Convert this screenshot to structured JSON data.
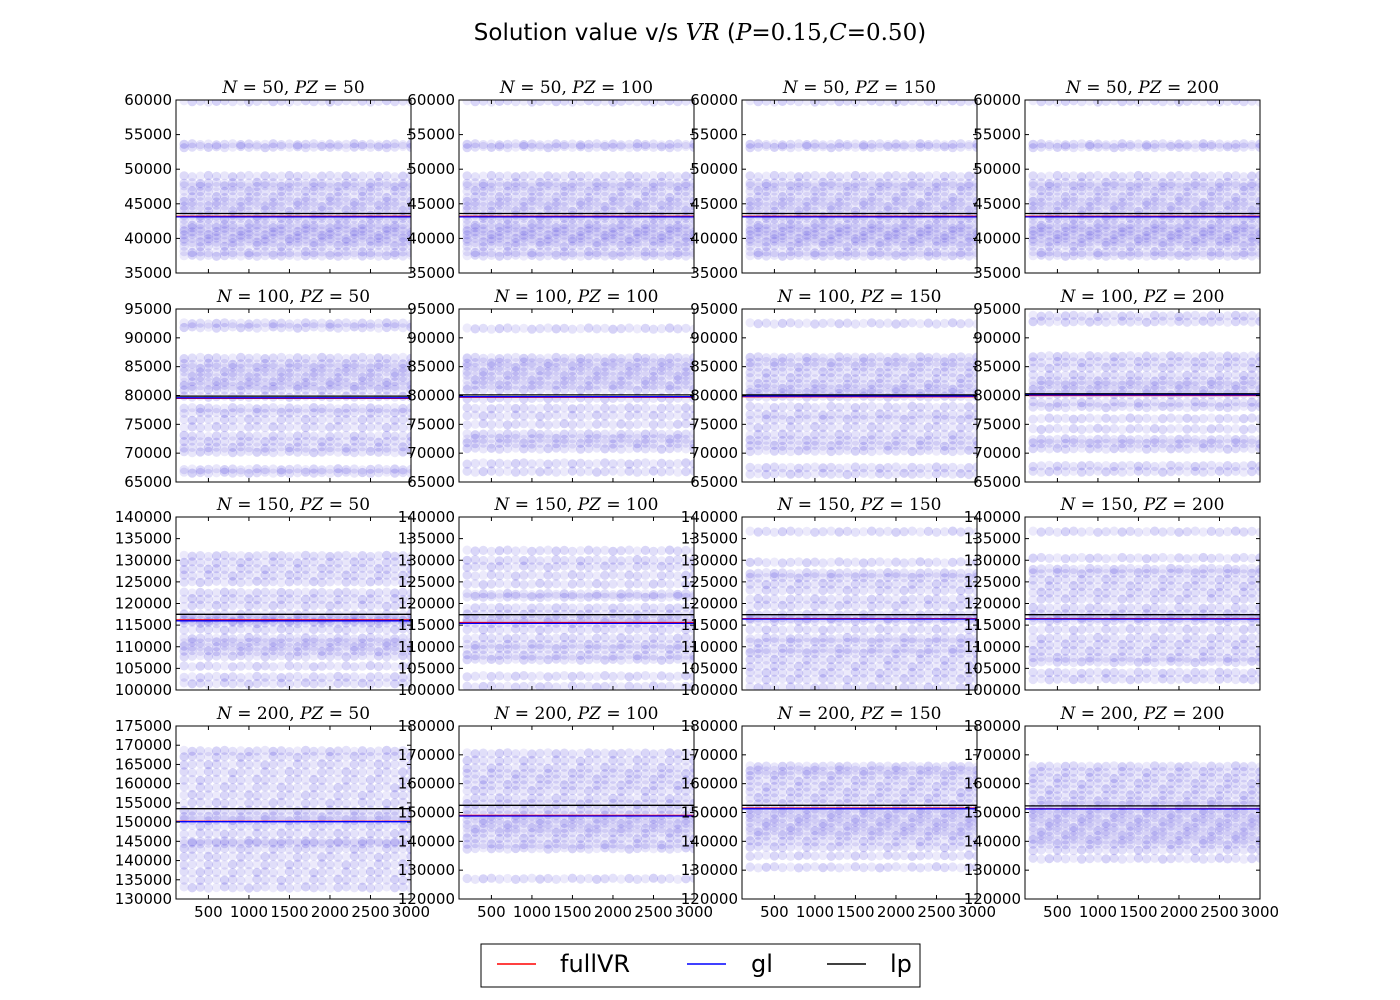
{
  "figure": {
    "title_prefix": "Solution value v/s ",
    "title_var": "VR",
    "title_params_open": " (",
    "title_p": "P",
    "title_p_val": "=0.15,",
    "title_c": "C",
    "title_c_val": "=0.50",
    "title_params_close": ")",
    "colors": {
      "fullVR": "#ff0000",
      "gl": "#0000ff",
      "lp": "#000000",
      "points": "#2b1bd6"
    }
  },
  "legend": [
    {
      "label": "fullVR",
      "color": "#ff0000"
    },
    {
      "label": "gl",
      "color": "#0000ff"
    },
    {
      "label": "lp",
      "color": "#000000"
    }
  ],
  "chart_data": [
    {
      "type": "scatter",
      "N": "50",
      "PZ": "50",
      "xlim": [
        100,
        3000
      ],
      "ylim": [
        35000,
        60000
      ],
      "yticks": [
        35000,
        40000,
        45000,
        50000,
        55000,
        60000
      ],
      "xticks": [
        500,
        1000,
        1500,
        2000,
        2500,
        3000
      ],
      "xticklabels_visible": false,
      "levels": [
        59800,
        53600,
        53200,
        49000,
        48000,
        47500,
        46800,
        46000,
        45300,
        44700,
        44000,
        43300,
        42800,
        42000,
        41500,
        41000,
        40500,
        40000,
        39500,
        38900,
        38000,
        37500
      ],
      "lines": [
        {
          "series": "fullVR",
          "y": 43200
        },
        {
          "series": "gl",
          "y": 43100
        },
        {
          "series": "lp",
          "y": 43600
        }
      ]
    },
    {
      "type": "scatter",
      "N": "50",
      "PZ": "100",
      "xlim": [
        100,
        3000
      ],
      "ylim": [
        35000,
        60000
      ],
      "yticks": [
        35000,
        40000,
        45000,
        50000,
        55000,
        60000
      ],
      "xticks": [
        500,
        1000,
        1500,
        2000,
        2500,
        3000
      ],
      "xticklabels_visible": false,
      "levels": [
        59800,
        53600,
        53200,
        49000,
        48000,
        47500,
        46800,
        46000,
        45300,
        44700,
        44000,
        43300,
        42800,
        42000,
        41500,
        41000,
        40500,
        40000,
        39500,
        38900,
        38000,
        37500
      ],
      "lines": [
        {
          "series": "fullVR",
          "y": 43200
        },
        {
          "series": "gl",
          "y": 43100
        },
        {
          "series": "lp",
          "y": 43600
        }
      ]
    },
    {
      "type": "scatter",
      "N": "50",
      "PZ": "150",
      "xlim": [
        100,
        3000
      ],
      "ylim": [
        35000,
        60000
      ],
      "yticks": [
        35000,
        40000,
        45000,
        50000,
        55000,
        60000
      ],
      "xticks": [
        500,
        1000,
        1500,
        2000,
        2500,
        3000
      ],
      "xticklabels_visible": false,
      "levels": [
        59800,
        53600,
        53200,
        49000,
        48000,
        47500,
        46800,
        46000,
        45300,
        44700,
        44000,
        43300,
        42800,
        42000,
        41500,
        41000,
        40500,
        40000,
        39500,
        38900,
        38000,
        37500
      ],
      "lines": [
        {
          "series": "fullVR",
          "y": 43200
        },
        {
          "series": "gl",
          "y": 43100
        },
        {
          "series": "lp",
          "y": 43600
        }
      ]
    },
    {
      "type": "scatter",
      "N": "50",
      "PZ": "200",
      "xlim": [
        100,
        3000
      ],
      "ylim": [
        35000,
        60000
      ],
      "yticks": [
        35000,
        40000,
        45000,
        50000,
        55000,
        60000
      ],
      "xticks": [
        500,
        1000,
        1500,
        2000,
        2500,
        3000
      ],
      "xticklabels_visible": false,
      "levels": [
        59800,
        53600,
        53200,
        49000,
        48000,
        47500,
        46800,
        46000,
        45300,
        44700,
        44000,
        43300,
        42800,
        42000,
        41500,
        41000,
        40500,
        40000,
        39500,
        38900,
        38000,
        37500
      ],
      "lines": [
        {
          "series": "fullVR",
          "y": 43200
        },
        {
          "series": "gl",
          "y": 43100
        },
        {
          "series": "lp",
          "y": 43600
        }
      ]
    },
    {
      "type": "scatter",
      "N": "100",
      "PZ": "50",
      "xlim": [
        100,
        3000
      ],
      "ylim": [
        65000,
        95000
      ],
      "yticks": [
        65000,
        70000,
        75000,
        80000,
        85000,
        90000,
        95000
      ],
      "xticks": [
        500,
        1000,
        1500,
        2000,
        2500,
        3000
      ],
      "xticklabels_visible": false,
      "levels": [
        92500,
        91800,
        86500,
        85500,
        84800,
        84000,
        83200,
        82400,
        81700,
        81000,
        79800,
        77800,
        77000,
        75800,
        74500,
        73000,
        72000,
        71000,
        70200,
        67200,
        66600
      ],
      "lines": [
        {
          "series": "fullVR",
          "y": 79500
        },
        {
          "series": "gl",
          "y": 79600
        },
        {
          "series": "lp",
          "y": 79900
        }
      ]
    },
    {
      "type": "scatter",
      "N": "100",
      "PZ": "100",
      "xlim": [
        100,
        3000
      ],
      "ylim": [
        65000,
        95000
      ],
      "yticks": [
        65000,
        70000,
        75000,
        80000,
        85000,
        90000,
        95000
      ],
      "xticks": [
        500,
        1000,
        1500,
        2000,
        2500,
        3000
      ],
      "xticklabels_visible": false,
      "levels": [
        91600,
        86500,
        85700,
        85000,
        84200,
        83400,
        82600,
        81800,
        81000,
        79500,
        77800,
        76500,
        75000,
        73300,
        72500,
        71700,
        70800,
        68200,
        66800
      ],
      "lines": [
        {
          "series": "fullVR",
          "y": 79700
        },
        {
          "series": "gl",
          "y": 79800
        },
        {
          "series": "lp",
          "y": 80100
        }
      ]
    },
    {
      "type": "scatter",
      "N": "100",
      "PZ": "150",
      "xlim": [
        100,
        3000
      ],
      "ylim": [
        65000,
        95000
      ],
      "yticks": [
        65000,
        70000,
        75000,
        80000,
        85000,
        90000,
        95000
      ],
      "xticks": [
        500,
        1000,
        1500,
        2000,
        2500,
        3000
      ],
      "xticklabels_visible": false,
      "levels": [
        92500,
        86600,
        85800,
        85000,
        84000,
        83000,
        82000,
        81200,
        80500,
        79800,
        78000,
        76700,
        75800,
        74500,
        73200,
        72200,
        71300,
        70400,
        67500,
        66400
      ],
      "lines": [
        {
          "series": "fullVR",
          "y": 79800
        },
        {
          "series": "gl",
          "y": 79900
        },
        {
          "series": "lp",
          "y": 80100
        }
      ]
    },
    {
      "type": "scatter",
      "N": "100",
      "PZ": "200",
      "xlim": [
        100,
        3000
      ],
      "ylim": [
        65000,
        95000
      ],
      "yticks": [
        65000,
        70000,
        75000,
        80000,
        85000,
        90000,
        95000
      ],
      "xticks": [
        500,
        1000,
        1500,
        2000,
        2500,
        3000
      ],
      "xticklabels_visible": false,
      "levels": [
        93800,
        92800,
        86800,
        85800,
        84800,
        83500,
        82500,
        81800,
        81000,
        80200,
        78800,
        78000,
        76000,
        74200,
        72400,
        71700,
        70800,
        67800,
        66800
      ],
      "lines": [
        {
          "series": "fullVR",
          "y": 80000
        },
        {
          "series": "gl",
          "y": 80100
        },
        {
          "series": "lp",
          "y": 80300
        }
      ]
    },
    {
      "type": "scatter",
      "N": "150",
      "PZ": "50",
      "xlim": [
        100,
        3000
      ],
      "ylim": [
        100000,
        140000
      ],
      "yticks": [
        100000,
        105000,
        110000,
        115000,
        120000,
        125000,
        130000,
        135000,
        140000
      ],
      "xticks": [
        500,
        1000,
        1500,
        2000,
        2500,
        3000
      ],
      "xticklabels_visible": false,
      "levels": [
        131000,
        129500,
        128000,
        126500,
        125000,
        122500,
        121000,
        119500,
        117500,
        116500,
        116000,
        115500,
        114000,
        112000,
        111000,
        110000,
        109000,
        107800,
        105500,
        103000,
        101500
      ],
      "lines": [
        {
          "series": "fullVR",
          "y": 116200
        },
        {
          "series": "gl",
          "y": 116000
        },
        {
          "series": "lp",
          "y": 117500
        }
      ]
    },
    {
      "type": "scatter",
      "N": "150",
      "PZ": "100",
      "xlim": [
        100,
        3000
      ],
      "ylim": [
        100000,
        140000
      ],
      "yticks": [
        100000,
        105000,
        110000,
        115000,
        120000,
        125000,
        130000,
        135000,
        140000
      ],
      "xticks": [
        500,
        1000,
        1500,
        2000,
        2500,
        3000
      ],
      "xticklabels_visible": false,
      "levels": [
        132200,
        130000,
        128500,
        126500,
        124500,
        122200,
        121500,
        119000,
        117500,
        116300,
        115500,
        114000,
        112000,
        110500,
        109500,
        108000,
        107000,
        103200,
        100800
      ],
      "lines": [
        {
          "series": "fullVR",
          "y": 115600
        },
        {
          "series": "gl",
          "y": 115400
        },
        {
          "series": "lp",
          "y": 117400
        }
      ]
    },
    {
      "type": "scatter",
      "N": "150",
      "PZ": "150",
      "xlim": [
        100,
        3000
      ],
      "ylim": [
        100000,
        140000
      ],
      "yticks": [
        100000,
        105000,
        110000,
        115000,
        120000,
        125000,
        130000,
        135000,
        140000
      ],
      "xticks": [
        500,
        1000,
        1500,
        2000,
        2500,
        3000
      ],
      "xticklabels_visible": false,
      "levels": [
        136600,
        129500,
        127000,
        126000,
        124500,
        123000,
        121000,
        119500,
        117500,
        116600,
        116000,
        114000,
        112000,
        111000,
        109500,
        108500,
        107000,
        105500,
        104000,
        102500,
        100600
      ],
      "lines": [
        {
          "series": "fullVR",
          "y": 116500
        },
        {
          "series": "gl",
          "y": 116400
        },
        {
          "series": "lp",
          "y": 117400
        }
      ]
    },
    {
      "type": "scatter",
      "N": "150",
      "PZ": "200",
      "xlim": [
        100,
        3000
      ],
      "ylim": [
        100000,
        140000
      ],
      "yticks": [
        100000,
        105000,
        110000,
        115000,
        120000,
        125000,
        130000,
        135000,
        140000
      ],
      "xticks": [
        500,
        1000,
        1500,
        2000,
        2500,
        3000
      ],
      "xticklabels_visible": false,
      "levels": [
        136600,
        130500,
        128000,
        127000,
        125500,
        124000,
        122500,
        121000,
        119000,
        117500,
        116700,
        116000,
        114000,
        112000,
        110500,
        109000,
        107500,
        106500,
        104000,
        102500
      ],
      "lines": [
        {
          "series": "fullVR",
          "y": 116500
        },
        {
          "series": "gl",
          "y": 116400
        },
        {
          "series": "lp",
          "y": 117400
        }
      ]
    },
    {
      "type": "scatter",
      "N": "200",
      "PZ": "50",
      "xlim": [
        100,
        3000
      ],
      "ylim": [
        130000,
        175000
      ],
      "yticks": [
        130000,
        135000,
        140000,
        145000,
        150000,
        155000,
        160000,
        165000,
        170000,
        175000
      ],
      "xticks": [
        500,
        1000,
        1500,
        2000,
        2500,
        3000
      ],
      "xticklabels": [
        "500",
        "1000",
        "1500",
        "2000",
        "2500",
        "3000"
      ],
      "levels": [
        168500,
        167000,
        165000,
        163000,
        161000,
        159000,
        157000,
        155000,
        153000,
        151500,
        150500,
        149000,
        147000,
        145000,
        144500,
        143000,
        141000,
        139000,
        137000,
        135000,
        133000
      ],
      "lines": [
        {
          "series": "fullVR",
          "y": 150200
        },
        {
          "series": "gl",
          "y": 150100
        },
        {
          "series": "lp",
          "y": 153500
        }
      ]
    },
    {
      "type": "scatter",
      "N": "200",
      "PZ": "100",
      "xlim": [
        100,
        3000
      ],
      "ylim": [
        120000,
        180000
      ],
      "yticks": [
        120000,
        130000,
        140000,
        150000,
        160000,
        170000,
        180000
      ],
      "xticks": [
        500,
        1000,
        1500,
        2000,
        2500,
        3000
      ],
      "xticklabels": [
        "500",
        "1000",
        "1500",
        "2000",
        "2500",
        "3000"
      ],
      "levels": [
        170500,
        168000,
        165500,
        163500,
        161500,
        159500,
        157500,
        155000,
        153000,
        151000,
        149000,
        147500,
        146000,
        144500,
        143000,
        141000,
        139000,
        137500,
        127000
      ],
      "lines": [
        {
          "series": "fullVR",
          "y": 149000
        },
        {
          "series": "gl",
          "y": 148800
        },
        {
          "series": "lp",
          "y": 152500
        }
      ]
    },
    {
      "type": "scatter",
      "N": "200",
      "PZ": "150",
      "xlim": [
        100,
        3000
      ],
      "ylim": [
        120000,
        180000
      ],
      "yticks": [
        120000,
        130000,
        140000,
        150000,
        160000,
        170000,
        180000
      ],
      "xticks": [
        500,
        1000,
        1500,
        2000,
        2500,
        3000
      ],
      "xticklabels": [
        "500",
        "1000",
        "1500",
        "2000",
        "2500",
        "3000"
      ],
      "levels": [
        166000,
        164500,
        163000,
        161000,
        159000,
        157000,
        155000,
        153000,
        151000,
        149500,
        148000,
        146500,
        145000,
        143500,
        142000,
        140000,
        138000,
        135000,
        131000
      ],
      "lines": [
        {
          "series": "fullVR",
          "y": 151500
        },
        {
          "series": "gl",
          "y": 151300
        },
        {
          "series": "lp",
          "y": 152500
        }
      ]
    },
    {
      "type": "scatter",
      "N": "200",
      "PZ": "200",
      "xlim": [
        100,
        3000
      ],
      "ylim": [
        120000,
        180000
      ],
      "yticks": [
        120000,
        130000,
        140000,
        150000,
        160000,
        170000,
        180000
      ],
      "xticks": [
        500,
        1000,
        1500,
        2000,
        2500,
        3000
      ],
      "xticklabels": [
        "500",
        "1000",
        "1500",
        "2000",
        "2500",
        "3000"
      ],
      "levels": [
        166000,
        164000,
        162000,
        160000,
        158000,
        156000,
        154000,
        152500,
        151000,
        149500,
        148000,
        146500,
        145000,
        143500,
        142000,
        140500,
        139000,
        137000,
        134000
      ],
      "lines": [
        {
          "series": "fullVR",
          "y": 151300
        },
        {
          "series": "gl",
          "y": 151200
        },
        {
          "series": "lp",
          "y": 152300
        }
      ]
    }
  ]
}
